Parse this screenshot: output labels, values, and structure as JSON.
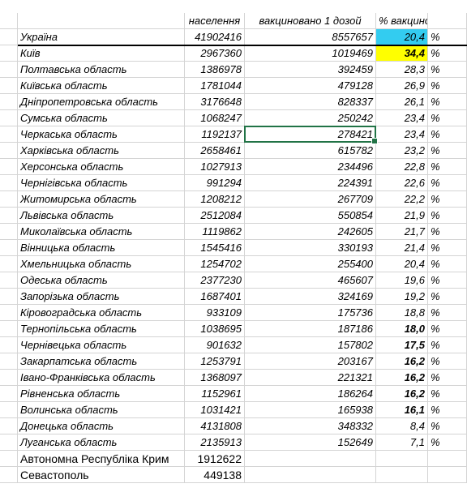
{
  "headers": {
    "region": "",
    "population": "населення",
    "vaccinated": "вакциновано 1 дозой",
    "percent": "% вакцинованих",
    "unit": ""
  },
  "rows": [
    {
      "region": "Україна",
      "population": "41902416",
      "vaccinated": "8557657",
      "percent": "20,4",
      "unit": "%",
      "highlight": "cyan",
      "bold": false
    },
    {
      "region": "Київ",
      "population": "2967360",
      "vaccinated": "1019469",
      "percent": "34,4",
      "unit": "%",
      "highlight": "yellow",
      "bold": true
    },
    {
      "region": "Полтавська область",
      "population": "1386978",
      "vaccinated": "392459",
      "percent": "28,3",
      "unit": "%",
      "highlight": "",
      "bold": false
    },
    {
      "region": "Київська область",
      "population": "1781044",
      "vaccinated": "479128",
      "percent": "26,9",
      "unit": "%",
      "highlight": "",
      "bold": false
    },
    {
      "region": "Дніпропетровська область",
      "population": "3176648",
      "vaccinated": "828337",
      "percent": "26,1",
      "unit": "%",
      "highlight": "",
      "bold": false
    },
    {
      "region": "Сумська область",
      "population": "1068247",
      "vaccinated": "250242",
      "percent": "23,4",
      "unit": "%",
      "highlight": "",
      "bold": false
    },
    {
      "region": "Черкаська область",
      "population": "1192137",
      "vaccinated": "278421",
      "percent": "23,4",
      "unit": "%",
      "highlight": "",
      "bold": false
    },
    {
      "region": "Харківська область",
      "population": "2658461",
      "vaccinated": "615782",
      "percent": "23,2",
      "unit": "%",
      "highlight": "",
      "bold": false
    },
    {
      "region": "Херсонська область",
      "population": "1027913",
      "vaccinated": "234496",
      "percent": "22,8",
      "unit": "%",
      "highlight": "",
      "bold": false
    },
    {
      "region": "Чернігівська область",
      "population": "991294",
      "vaccinated": "224391",
      "percent": "22,6",
      "unit": "%",
      "highlight": "",
      "bold": false
    },
    {
      "region": "Житомирська область",
      "population": "1208212",
      "vaccinated": "267709",
      "percent": "22,2",
      "unit": "%",
      "highlight": "",
      "bold": false
    },
    {
      "region": "Львівська область",
      "population": "2512084",
      "vaccinated": "550854",
      "percent": "21,9",
      "unit": "%",
      "highlight": "",
      "bold": false
    },
    {
      "region": "Миколаївська область",
      "population": "1119862",
      "vaccinated": "242605",
      "percent": "21,7",
      "unit": "%",
      "highlight": "",
      "bold": false
    },
    {
      "region": "Вінницька область",
      "population": "1545416",
      "vaccinated": "330193",
      "percent": "21,4",
      "unit": "%",
      "highlight": "",
      "bold": false
    },
    {
      "region": "Хмельницька область",
      "population": "1254702",
      "vaccinated": "255400",
      "percent": "20,4",
      "unit": "%",
      "highlight": "",
      "bold": false
    },
    {
      "region": "Одеська область",
      "population": "2377230",
      "vaccinated": "465607",
      "percent": "19,6",
      "unit": "%",
      "highlight": "",
      "bold": false
    },
    {
      "region": "Запорізька область",
      "population": "1687401",
      "vaccinated": "324169",
      "percent": "19,2",
      "unit": "%",
      "highlight": "",
      "bold": false
    },
    {
      "region": "Кіровоградська область",
      "population": "933109",
      "vaccinated": "175736",
      "percent": "18,8",
      "unit": "%",
      "highlight": "",
      "bold": false
    },
    {
      "region": "Тернопільська область",
      "population": "1038695",
      "vaccinated": "187186",
      "percent": "18,0",
      "unit": "%",
      "highlight": "",
      "bold": true
    },
    {
      "region": "Чернівецька область",
      "population": "901632",
      "vaccinated": "157802",
      "percent": "17,5",
      "unit": "%",
      "highlight": "",
      "bold": true
    },
    {
      "region": "Закарпатська область",
      "population": "1253791",
      "vaccinated": "203167",
      "percent": "16,2",
      "unit": "%",
      "highlight": "",
      "bold": true
    },
    {
      "region": "Івано-Франківська область",
      "population": "1368097",
      "vaccinated": "221321",
      "percent": "16,2",
      "unit": "%",
      "highlight": "",
      "bold": true
    },
    {
      "region": "Рівненська область",
      "population": "1152961",
      "vaccinated": "186264",
      "percent": "16,2",
      "unit": "%",
      "highlight": "",
      "bold": true
    },
    {
      "region": "Волинська область",
      "population": "1031421",
      "vaccinated": "165938",
      "percent": "16,1",
      "unit": "%",
      "highlight": "",
      "bold": true
    },
    {
      "region": "Донецька область",
      "population": "4131808",
      "vaccinated": "348332",
      "percent": "8,4",
      "unit": "%",
      "highlight": "",
      "bold": false
    },
    {
      "region": "Луганська область",
      "population": "2135913",
      "vaccinated": "152649",
      "percent": "7,1",
      "unit": "%",
      "highlight": "",
      "bold": false
    },
    {
      "region": "Автономна Республіка Крим",
      "population": "1912622",
      "vaccinated": "",
      "percent": "",
      "unit": "",
      "highlight": "",
      "bold": false,
      "normal": true
    },
    {
      "region": "Севастополь",
      "population": "449138",
      "vaccinated": "",
      "percent": "",
      "unit": "",
      "highlight": "",
      "bold": false,
      "normal": true
    }
  ],
  "selected_cell": {
    "row": 6,
    "column": "vaccinated"
  },
  "colors": {
    "cyan": "#33ccf0",
    "yellow": "#ffff00",
    "selection": "#217346"
  }
}
